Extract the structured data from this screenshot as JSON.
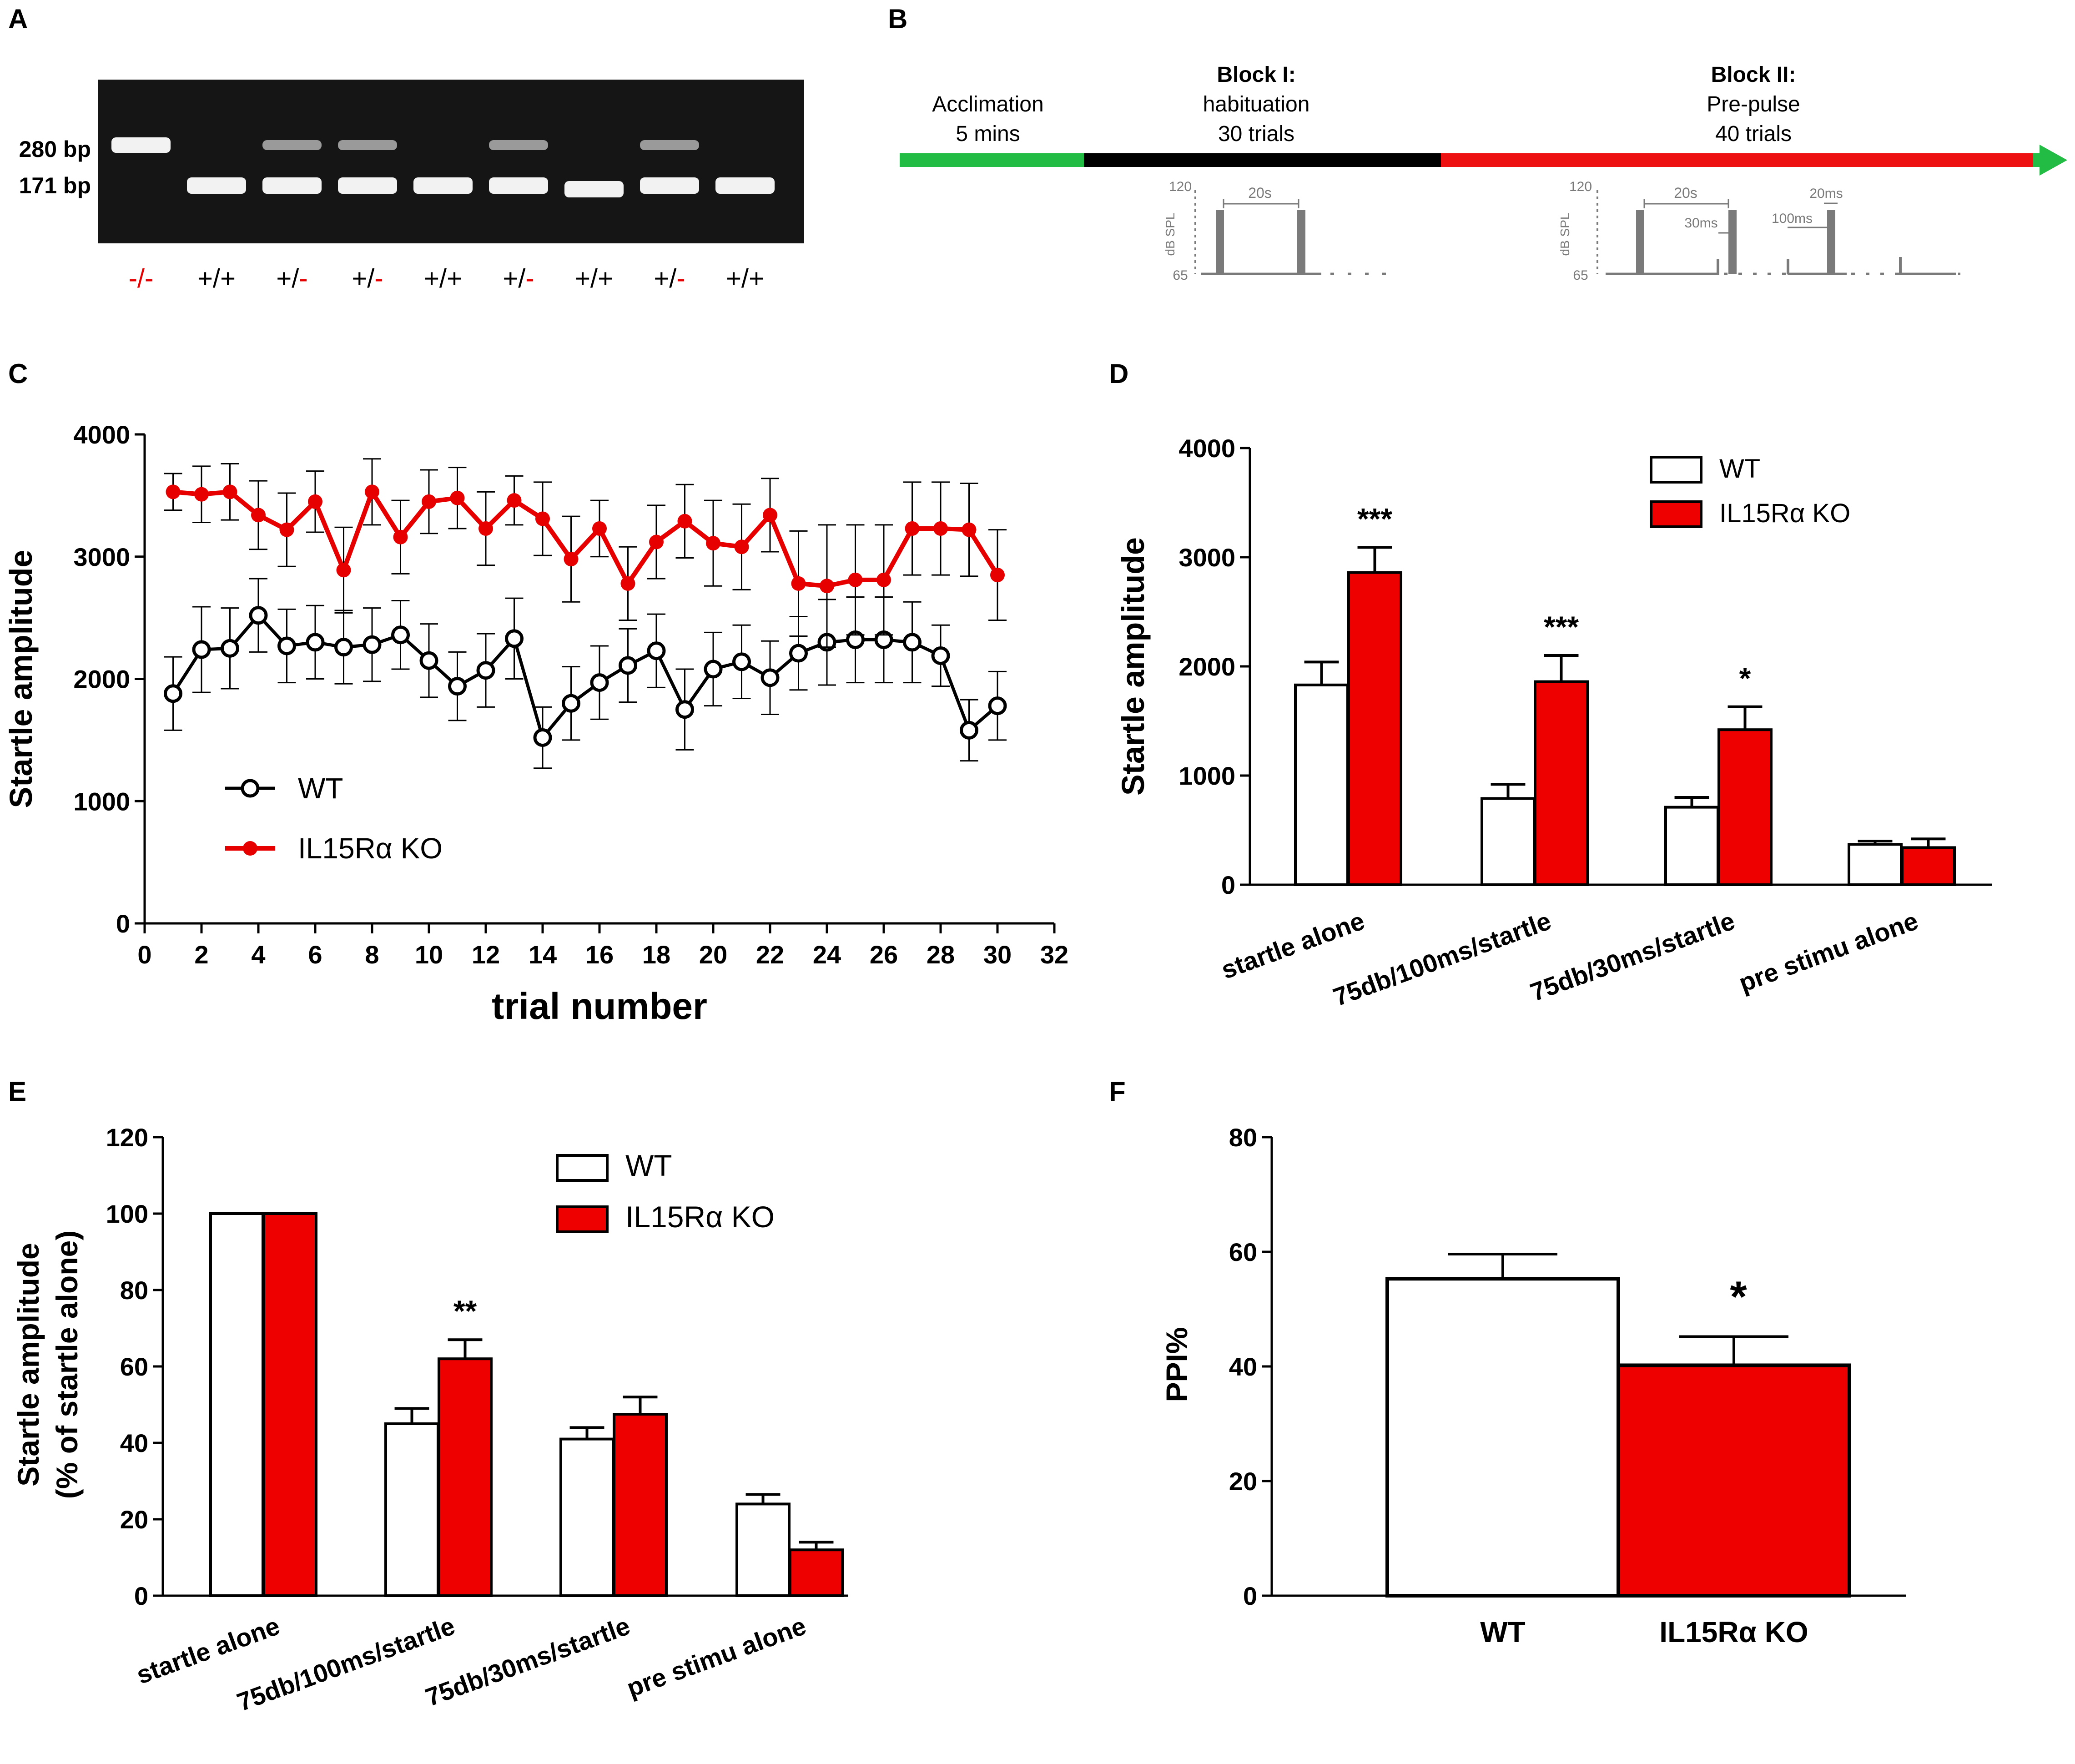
{
  "colors": {
    "wt": "#000000",
    "ko": "#e60000",
    "ko_fill": "#ee0000",
    "green": "#22bb44",
    "red_track": "#ee1111",
    "gel_bg": "#151515",
    "gray": "#7a7a7a"
  },
  "panels": {
    "a": {
      "letter": "A",
      "markers": [
        "280 bp",
        "171 bp"
      ],
      "lanes": [
        {
          "left": "-/",
          "right": "-",
          "left_red": true,
          "right_red": true,
          "upper": true,
          "lower": false
        },
        {
          "left": "+/",
          "right": "+",
          "left_red": false,
          "right_red": false,
          "upper": false,
          "lower": true
        },
        {
          "left": "+/",
          "right": "-",
          "left_red": false,
          "right_red": true,
          "upper": true,
          "lower": true
        },
        {
          "left": "+/",
          "right": "-",
          "left_red": false,
          "right_red": true,
          "upper": true,
          "lower": true
        },
        {
          "left": "+/",
          "right": "+",
          "left_red": false,
          "right_red": false,
          "upper": false,
          "lower": true
        },
        {
          "left": "+/",
          "right": "-",
          "left_red": false,
          "right_red": true,
          "upper": true,
          "lower": true
        },
        {
          "left": "+/",
          "right": "+",
          "left_red": false,
          "right_red": false,
          "upper": false,
          "lower": true
        },
        {
          "left": "+/",
          "right": "-",
          "left_red": false,
          "right_red": true,
          "upper": true,
          "lower": true
        },
        {
          "left": "+/",
          "right": "+",
          "left_red": false,
          "right_red": false,
          "upper": false,
          "lower": true
        }
      ]
    },
    "b": {
      "letter": "B",
      "acclimation": [
        "Acclimation",
        "5 mins"
      ],
      "block1": [
        "Block I:",
        "habituation",
        "30 trials"
      ],
      "block2": [
        "Block II:",
        "Pre-pulse",
        "40 trials"
      ],
      "ylabel": "dB SPL",
      "y_top": "120",
      "y_bottom": "65",
      "t20s": "20s",
      "t30ms": "30ms",
      "t100ms": "100ms",
      "t20ms": "20ms"
    },
    "c": {
      "letter": "C"
    },
    "d": {
      "letter": "D"
    },
    "e": {
      "letter": "E"
    },
    "f": {
      "letter": "F"
    }
  },
  "chart_data": [
    {
      "id": "C",
      "type": "line",
      "xlabel": "trial number",
      "ylabel": "Startle amplitude",
      "xlim": [
        0,
        32
      ],
      "ylim": [
        0,
        4000
      ],
      "xticks": [
        "0",
        "2",
        "4",
        "6",
        "8",
        "10",
        "12",
        "14",
        "16",
        "18",
        "20",
        "22",
        "24",
        "26",
        "28",
        "30",
        "32"
      ],
      "yticks": [
        "0",
        "1000",
        "2000",
        "3000",
        "4000"
      ],
      "x": [
        1,
        2,
        3,
        4,
        5,
        6,
        7,
        8,
        9,
        10,
        11,
        12,
        13,
        14,
        15,
        16,
        17,
        18,
        19,
        20,
        21,
        22,
        23,
        24,
        25,
        26,
        27,
        28,
        29,
        30
      ],
      "series": [
        {
          "name": "WT",
          "values": [
            1880,
            2240,
            2250,
            2520,
            2270,
            2300,
            2260,
            2280,
            2360,
            2150,
            1940,
            2070,
            2330,
            1520,
            1800,
            1970,
            2110,
            2230,
            1750,
            2080,
            2140,
            2010,
            2210,
            2300,
            2320,
            2320,
            2300,
            2190,
            1580,
            1780
          ],
          "err": [
            300,
            350,
            330,
            300,
            300,
            300,
            300,
            300,
            280,
            300,
            280,
            300,
            330,
            250,
            300,
            300,
            300,
            300,
            330,
            300,
            300,
            300,
            300,
            350,
            350,
            350,
            330,
            250,
            250,
            280
          ]
        },
        {
          "name": "IL15Rα KO",
          "values": [
            3530,
            3510,
            3530,
            3340,
            3220,
            3450,
            2890,
            3530,
            3160,
            3450,
            3480,
            3230,
            3460,
            3310,
            2980,
            3230,
            2780,
            3120,
            3290,
            3110,
            3080,
            3340,
            2780,
            2760,
            2810,
            2810,
            3230,
            3230,
            3220,
            2850
          ],
          "err": [
            150,
            230,
            230,
            280,
            300,
            250,
            350,
            270,
            300,
            260,
            250,
            300,
            200,
            300,
            350,
            230,
            300,
            300,
            300,
            350,
            350,
            300,
            430,
            500,
            450,
            450,
            380,
            380,
            380,
            370
          ]
        }
      ]
    },
    {
      "id": "D",
      "type": "bar",
      "ylabel": "Startle amplitude",
      "ylim": [
        0,
        4000
      ],
      "yticks": [
        "0",
        "1000",
        "2000",
        "3000",
        "4000"
      ],
      "categories": [
        "startle alone",
        "75db/100ms/startle",
        "75db/30ms/startle",
        "pre stimu  alone"
      ],
      "series": [
        {
          "name": "WT",
          "values": [
            1830,
            790,
            710,
            370
          ],
          "err": [
            210,
            130,
            90,
            30
          ]
        },
        {
          "name": "IL15Rα KO",
          "values": [
            2860,
            1860,
            1420,
            340
          ],
          "err": [
            230,
            240,
            210,
            80
          ]
        }
      ],
      "significance": [
        "***",
        "***",
        "*",
        ""
      ]
    },
    {
      "id": "E",
      "type": "bar",
      "ylabel": [
        "Startle amplitude",
        "(% of startle alone)"
      ],
      "ylim": [
        0,
        120
      ],
      "yticks": [
        "0",
        "20",
        "40",
        "60",
        "80",
        "100",
        "120"
      ],
      "categories": [
        "startle alone",
        "75db/100ms/startle",
        "75db/30ms/startle",
        "pre stimu  alone"
      ],
      "series": [
        {
          "name": "WT",
          "values": [
            100,
            45,
            41,
            24
          ],
          "err": [
            0,
            4,
            3,
            2.5
          ]
        },
        {
          "name": "IL15Rα KO",
          "values": [
            100,
            62,
            47.5,
            12
          ],
          "err": [
            0,
            5,
            4.5,
            2
          ]
        }
      ],
      "significance": [
        "",
        "**",
        "",
        ""
      ]
    },
    {
      "id": "F",
      "type": "bar",
      "ylabel": "PPI%",
      "ylim": [
        0,
        80
      ],
      "yticks": [
        "0",
        "20",
        "40",
        "60",
        "80"
      ],
      "categories": [
        "WT",
        "IL15Rα KO"
      ],
      "values": [
        55.3,
        40.2
      ],
      "err": [
        4.3,
        5
      ],
      "significance": [
        "",
        "*"
      ]
    }
  ]
}
